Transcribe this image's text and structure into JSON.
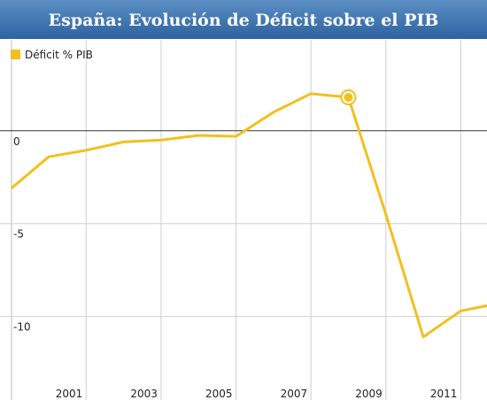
{
  "chart_data": {
    "type": "line",
    "title": "España: Evolución de Déficit sobre el PIB",
    "x": [
      1999,
      2000,
      2001,
      2002,
      2003,
      2004,
      2005,
      2006,
      2007,
      2008,
      2009,
      2010,
      2011,
      2012
    ],
    "series": [
      {
        "name": "Déficit % PIB",
        "color": "#f2c01e",
        "values": [
          -3.1,
          -1.4,
          -1.05,
          -0.6,
          -0.5,
          -0.25,
          -0.3,
          1.0,
          2.0,
          1.8,
          -4.5,
          -11.1,
          -9.7,
          -9.3
        ]
      }
    ],
    "highlighted_x": 2008,
    "xlim": [
      1998.7,
      2011.7
    ],
    "xticks": [
      2001,
      2003,
      2005,
      2007,
      2009,
      2011
    ],
    "ylim": [
      -14.5,
      4.9
    ],
    "yticks": [
      0,
      -5,
      -10
    ],
    "grid": true
  }
}
